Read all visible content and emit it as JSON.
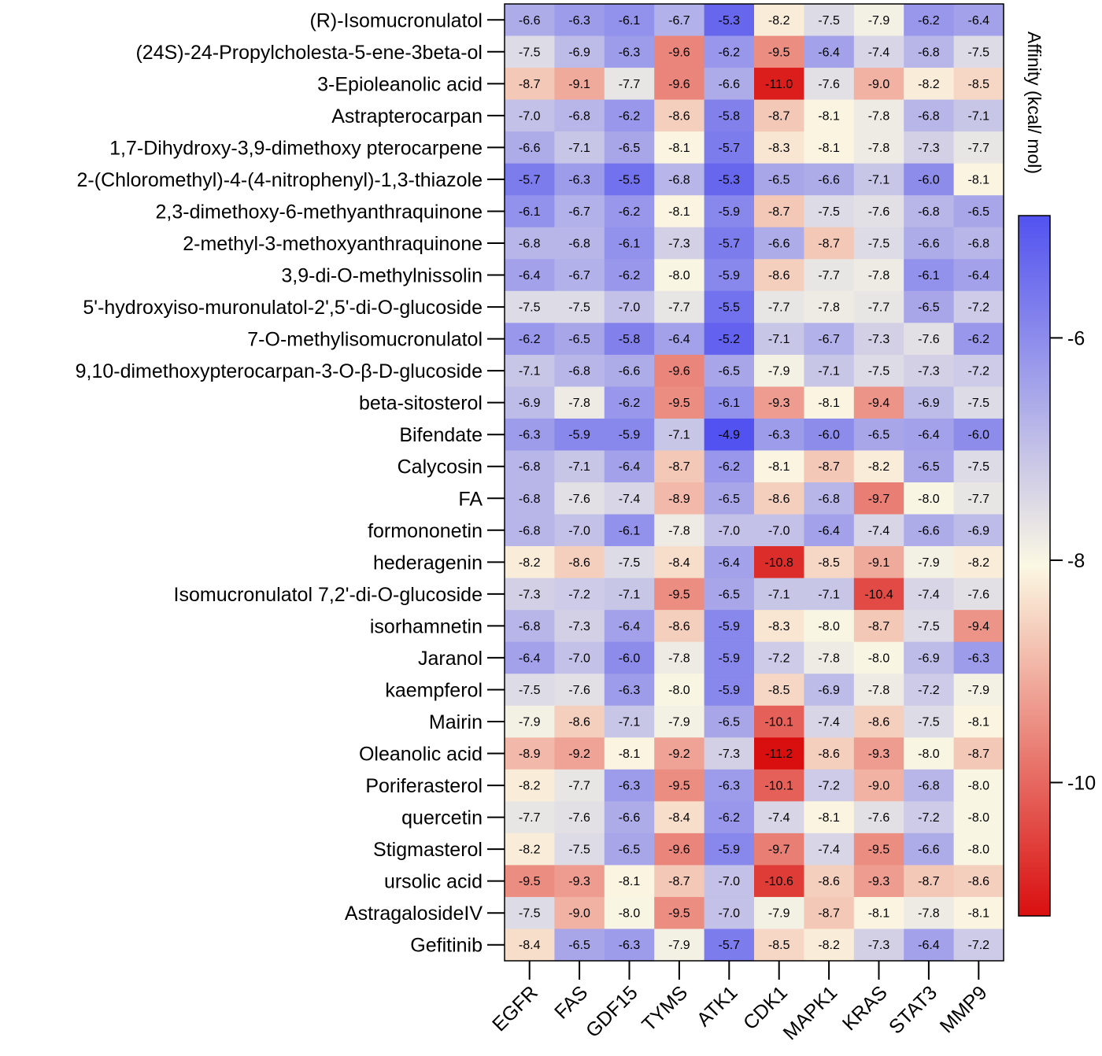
{
  "chart_data": {
    "type": "heatmap",
    "title": "",
    "rows": [
      "(R)-Isomucronulatol",
      "(24S)-24-Propylcholesta-5-ene-3beta-ol",
      "3-Epioleanolic acid",
      "Astrapterocarpan",
      "1,7-Dihydroxy-3,9-dimethoxy pterocarpene",
      "2-(Chloromethyl)-4-(4-nitrophenyl)-1,3-thiazole",
      "2,3-dimethoxy-6-methyanthraquinone",
      "2-methyl-3-methoxyanthraquinone",
      "3,9-di-O-methylnissolin",
      "5'-hydroxyiso-muronulatol-2',5'-di-O-glucoside",
      "7-O-methylisomucronulatol",
      "9,10-dimethoxypterocarpan-3-O-β-D-glucoside",
      "beta-sitosterol",
      "Bifendate",
      "Calycosin",
      "FA",
      "formononetin",
      "hederagenin",
      "Isomucronulatol 7,2'-di-O-glucoside",
      "isorhamnetin",
      "Jaranol",
      "kaempferol",
      "Mairin",
      "Oleanolic acid",
      "Poriferasterol",
      "quercetin",
      "Stigmasterol",
      "ursolic acid",
      "AstragalosideIV",
      "Gefitinib"
    ],
    "columns": [
      "EGFR",
      "FAS",
      "GDF15",
      "TYMS",
      "ATK1",
      "CDK1",
      "MAPK1",
      "KRAS",
      "STAT3",
      "MMP9"
    ],
    "values": [
      [
        -6.6,
        -6.3,
        -6.1,
        -6.7,
        -5.3,
        -8.2,
        -7.5,
        -7.9,
        -6.2,
        -6.4
      ],
      [
        -7.5,
        -6.9,
        -6.3,
        -9.6,
        -6.2,
        -9.5,
        -6.4,
        -7.4,
        -6.8,
        -7.5
      ],
      [
        -8.7,
        -9.1,
        -7.7,
        -9.6,
        -6.6,
        -11.0,
        -7.6,
        -9.0,
        -8.2,
        -8.5
      ],
      [
        -7.0,
        -6.8,
        -6.2,
        -8.6,
        -5.8,
        -8.7,
        -8.1,
        -7.8,
        -6.8,
        -7.1
      ],
      [
        -6.6,
        -7.1,
        -6.5,
        -8.1,
        -5.7,
        -8.3,
        -8.1,
        -7.8,
        -7.3,
        -7.7
      ],
      [
        -5.7,
        -6.3,
        -5.5,
        -6.8,
        -5.3,
        -6.5,
        -6.6,
        -7.1,
        -6.0,
        -8.1
      ],
      [
        -6.1,
        -6.7,
        -6.2,
        -8.1,
        -5.9,
        -8.7,
        -7.5,
        -7.6,
        -6.8,
        -6.5
      ],
      [
        -6.8,
        -6.8,
        -6.1,
        -7.3,
        -5.7,
        -6.6,
        -8.7,
        -7.5,
        -6.6,
        -6.8
      ],
      [
        -6.4,
        -6.7,
        -6.2,
        -8.0,
        -5.9,
        -8.6,
        -7.7,
        -7.8,
        -6.1,
        -6.4
      ],
      [
        -7.5,
        -7.5,
        -7.0,
        -7.7,
        -5.5,
        -7.7,
        -7.8,
        -7.7,
        -6.5,
        -7.2
      ],
      [
        -6.2,
        -6.5,
        -5.8,
        -6.4,
        -5.2,
        -7.1,
        -6.7,
        -7.3,
        -7.6,
        -6.2
      ],
      [
        -7.1,
        -6.8,
        -6.6,
        -9.6,
        -6.5,
        -7.9,
        -7.1,
        -7.5,
        -7.3,
        -7.2
      ],
      [
        -6.9,
        -7.8,
        -6.2,
        -9.5,
        -6.1,
        -9.3,
        -8.1,
        -9.4,
        -6.9,
        -7.5
      ],
      [
        -6.3,
        -5.9,
        -5.9,
        -7.1,
        -4.9,
        -6.3,
        -6.0,
        -6.5,
        -6.4,
        -6.0
      ],
      [
        -6.8,
        -7.1,
        -6.4,
        -8.7,
        -6.2,
        -8.1,
        -8.7,
        -8.2,
        -6.5,
        -7.5
      ],
      [
        -6.8,
        -7.6,
        -7.4,
        -8.9,
        -6.5,
        -8.6,
        -6.8,
        -9.7,
        -8.0,
        -7.7
      ],
      [
        -6.8,
        -7.0,
        -6.1,
        -7.8,
        -7.0,
        -7.0,
        -6.4,
        -7.4,
        -6.6,
        -6.9
      ],
      [
        -8.2,
        -8.6,
        -7.5,
        -8.4,
        -6.4,
        -10.8,
        -8.5,
        -9.1,
        -7.9,
        -8.2
      ],
      [
        -7.3,
        -7.2,
        -7.1,
        -9.5,
        -6.5,
        -7.1,
        -7.1,
        -10.4,
        -7.4,
        -7.6
      ],
      [
        -6.8,
        -7.3,
        -6.4,
        -8.6,
        -5.9,
        -8.3,
        -8.0,
        -8.7,
        -7.5,
        -9.4
      ],
      [
        -6.4,
        -7.0,
        -6.0,
        -7.8,
        -5.9,
        -7.2,
        -7.8,
        -8.0,
        -6.9,
        -6.3
      ],
      [
        -7.5,
        -7.6,
        -6.3,
        -8.0,
        -5.9,
        -8.5,
        -6.9,
        -7.8,
        -7.2,
        -7.9
      ],
      [
        -7.9,
        -8.6,
        -7.1,
        -7.9,
        -6.5,
        -10.1,
        -7.4,
        -8.6,
        -7.5,
        -8.1
      ],
      [
        -8.9,
        -9.2,
        -8.1,
        -9.2,
        -7.3,
        -11.2,
        -8.6,
        -9.3,
        -8.0,
        -8.7
      ],
      [
        -8.2,
        -7.7,
        -6.3,
        -9.5,
        -6.3,
        -10.1,
        -7.2,
        -9.0,
        -6.8,
        -8.0
      ],
      [
        -7.7,
        -7.6,
        -6.6,
        -8.4,
        -6.2,
        -7.4,
        -8.1,
        -7.6,
        -7.2,
        -8.0
      ],
      [
        -8.2,
        -7.5,
        -6.5,
        -9.6,
        -5.9,
        -9.7,
        -7.4,
        -9.5,
        -6.6,
        -8.0
      ],
      [
        -9.5,
        -9.3,
        -8.1,
        -8.7,
        -7.0,
        -10.6,
        -8.6,
        -9.3,
        -8.7,
        -8.6
      ],
      [
        -7.5,
        -9.0,
        -8.0,
        -9.5,
        -7.0,
        -7.9,
        -8.7,
        -8.1,
        -7.8,
        -8.1
      ],
      [
        -8.4,
        -6.5,
        -6.3,
        -7.9,
        -5.7,
        -8.5,
        -8.2,
        -7.3,
        -6.4,
        -7.2
      ]
    ],
    "colorbar": {
      "title": "Affinity (kcal/ mol)",
      "range": [
        -11.2,
        -4.9
      ],
      "ticks": [
        -6,
        -8,
        -10
      ],
      "color_low": "#d90f0f",
      "color_mid": "#fbf8e3",
      "color_high": "#5252f0"
    }
  }
}
